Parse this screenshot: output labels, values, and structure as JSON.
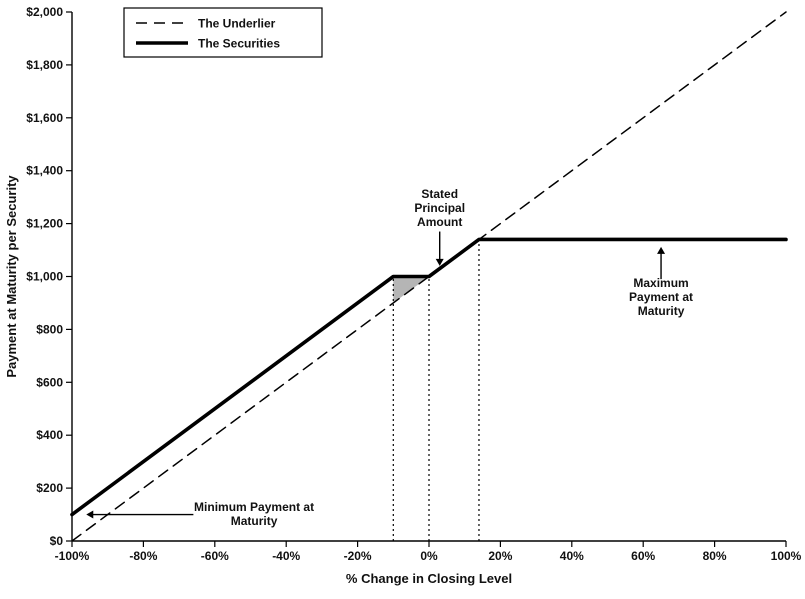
{
  "chart_data": {
    "type": "line",
    "title": "",
    "xlabel": "% Change in Closing Level",
    "ylabel": "Payment at Maturity per Security",
    "xlim": [
      -100,
      100
    ],
    "ylim": [
      0,
      2000
    ],
    "grid": false,
    "legend_position": "top-left",
    "x_tick_values": [
      -100,
      -80,
      -60,
      -40,
      -20,
      0,
      20,
      40,
      60,
      80,
      100
    ],
    "x_tick_labels": [
      "-100%",
      "-80%",
      "-60%",
      "-40%",
      "-20%",
      "0%",
      "20%",
      "40%",
      "60%",
      "80%",
      "100%"
    ],
    "y_tick_values": [
      0,
      200,
      400,
      600,
      800,
      1000,
      1200,
      1400,
      1600,
      1800,
      2000
    ],
    "y_tick_labels": [
      "$0",
      "$200",
      "$400",
      "$600",
      "$800",
      "$1,000",
      "$1,200",
      "$1,400",
      "$1,600",
      "$1,800",
      "$2,000"
    ],
    "series": [
      {
        "name": "The Underlier",
        "style": "dashed",
        "x": [
          -100,
          100
        ],
        "y": [
          0,
          2000
        ]
      },
      {
        "name": "The Securities",
        "style": "solid",
        "x": [
          -100,
          -10,
          0,
          14,
          100
        ],
        "y": [
          100,
          1000,
          1000,
          1140,
          1140
        ]
      }
    ],
    "key_points": {
      "minimum_payment": 100,
      "stated_principal_amount": 1000,
      "maximum_payment": 1140,
      "buffer_percent": -10,
      "cap_percent": 14
    },
    "reference_lines": [
      {
        "x": -10,
        "y_top": 1000
      },
      {
        "x": 0,
        "y_top": 1000
      },
      {
        "x": 14,
        "y_top": 1140
      }
    ],
    "shaded_region": {
      "points": [
        [
          -10,
          1000
        ],
        [
          0,
          1000
        ],
        [
          -10,
          900
        ]
      ],
      "fill": "#b5b5b5"
    },
    "legend": {
      "entries": [
        {
          "label": "The Underlier",
          "style": "dashed"
        },
        {
          "label": "The Securities",
          "style": "solid"
        }
      ]
    },
    "annotations": [
      {
        "id": "stated-principal-annotation",
        "lines": [
          "Stated",
          "Principal",
          "Amount"
        ],
        "x": 3,
        "y_top": 1297,
        "arrow": {
          "x1": 3,
          "y1": 1170,
          "x2": 3,
          "y2": 1040,
          "head": "down"
        }
      },
      {
        "id": "maximum-payment-annotation",
        "lines": [
          "Maximum",
          "Payment at",
          "Maturity"
        ],
        "x": 65,
        "y_top": 960,
        "arrow": {
          "x1": 65,
          "y1": 990,
          "x2": 65,
          "y2": 1112,
          "head": "up"
        }
      },
      {
        "id": "minimum-payment-annotation",
        "lines": [
          "Minimum Payment at",
          "Maturity"
        ],
        "x": -49,
        "y_top": 113,
        "arrow": {
          "x1": -66,
          "y1": 100,
          "x2": -96,
          "y2": 100,
          "head": "left"
        }
      }
    ],
    "colors": {
      "line": "#000000",
      "text": "#111111",
      "shade": "#b5b5b5",
      "background": "#ffffff"
    }
  }
}
